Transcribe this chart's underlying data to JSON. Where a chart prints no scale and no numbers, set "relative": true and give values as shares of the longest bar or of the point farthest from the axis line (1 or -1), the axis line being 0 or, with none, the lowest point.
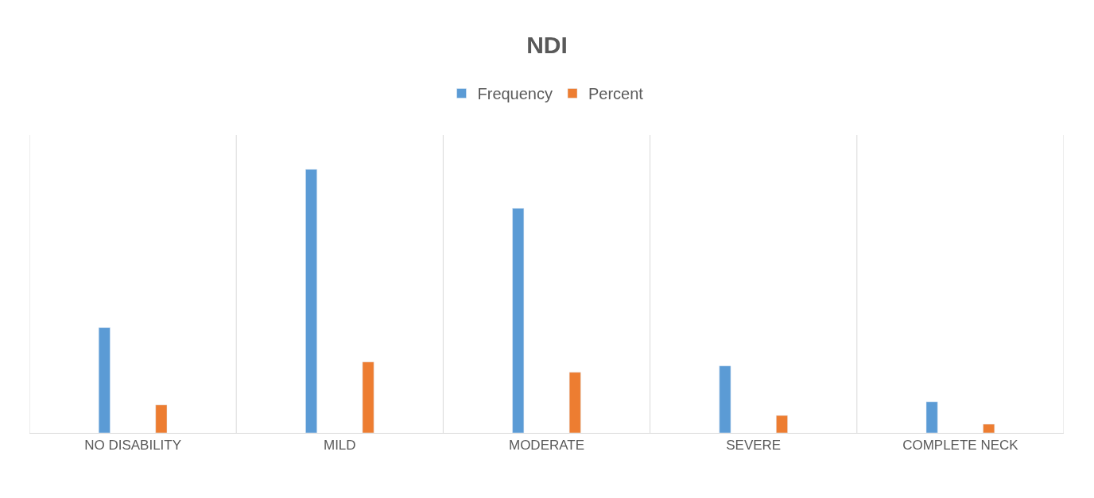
{
  "chart_data": {
    "type": "bar",
    "title": "NDI",
    "relative": true,
    "grid": "x",
    "legend": "top",
    "categories": [
      "NO DISABILITY",
      "MILD",
      "MODERATE",
      "SEVERE",
      "COMPLETE NECK"
    ],
    "series": [
      {
        "name": "Frequency",
        "color": "#5b9bd5",
        "values": [
          0.399,
          1,
          0.852,
          0.254,
          0.118
        ]
      },
      {
        "name": "Percent",
        "color": "#ed7d31",
        "values": [
          0.106,
          0.269,
          0.23,
          0.066,
          0.033
        ]
      }
    ]
  }
}
